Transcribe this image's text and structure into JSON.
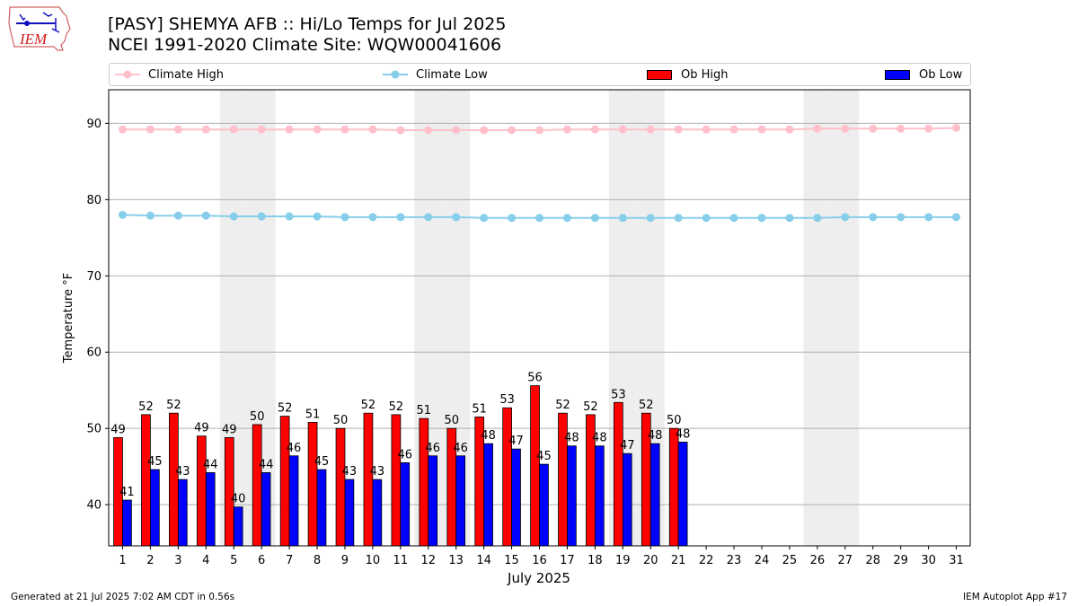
{
  "header": {
    "logo_text": "IEM",
    "title_line1": "[PASY] SHEMYA AFB :: Hi/Lo Temps for Jul 2025",
    "title_line2": "NCEI 1991-2020 Climate Site: WQW00041606"
  },
  "footer": {
    "generated": "Generated at 21 Jul 2025 7:02 AM CDT in 0.56s",
    "app": "IEM Autoplot App #17"
  },
  "legend": {
    "climate_high": "Climate High",
    "climate_low": "Climate Low",
    "ob_high": "Ob High",
    "ob_low": "Ob Low"
  },
  "colors": {
    "climate_high": "#ffc0cb",
    "climate_low": "#87ceeb",
    "ob_high": "#ff0000",
    "ob_low": "#0000ff",
    "weekend_band": "#eeeeee",
    "grid": "#b0b0b0"
  },
  "chart_data": {
    "type": "bar",
    "xlabel": "July 2025",
    "ylabel": "Temperature °F",
    "ylim": [
      34.6,
      94.4
    ],
    "yticks": [
      40,
      50,
      60,
      70,
      80,
      90
    ],
    "grid": "horizontal",
    "legend_position": "top",
    "days": [
      1,
      2,
      3,
      4,
      5,
      6,
      7,
      8,
      9,
      10,
      11,
      12,
      13,
      14,
      15,
      16,
      17,
      18,
      19,
      20,
      21,
      22,
      23,
      24,
      25,
      26,
      27,
      28,
      29,
      30,
      31
    ],
    "weekend_days": [
      5,
      6,
      12,
      13,
      19,
      20,
      26,
      27
    ],
    "series": [
      {
        "name": "Ob High",
        "kind": "bar",
        "values": [
          48.8,
          51.8,
          52.0,
          49.0,
          48.8,
          50.5,
          51.6,
          50.8,
          50.0,
          52.0,
          51.8,
          51.3,
          50.0,
          51.5,
          52.7,
          55.6,
          52.0,
          51.8,
          53.4,
          52.0,
          50.0
        ],
        "labels": [
          "49",
          "52",
          "52",
          "49",
          "49",
          "50",
          "52",
          "51",
          "50",
          "52",
          "52",
          "51",
          "50",
          "51",
          "53",
          "56",
          "52",
          "52",
          "53",
          "52",
          "50"
        ]
      },
      {
        "name": "Ob Low",
        "kind": "bar",
        "values": [
          40.6,
          44.6,
          43.3,
          44.2,
          39.7,
          44.2,
          46.4,
          44.6,
          43.3,
          43.3,
          45.5,
          46.4,
          46.4,
          48.0,
          47.3,
          45.3,
          47.7,
          47.7,
          46.7,
          48.0,
          48.2
        ],
        "labels": [
          "41",
          "45",
          "43",
          "44",
          "40",
          "44",
          "46",
          "45",
          "43",
          "43",
          "46",
          "46",
          "46",
          "48",
          "47",
          "45",
          "48",
          "48",
          "47",
          "48",
          "48"
        ]
      },
      {
        "name": "Climate High",
        "kind": "line",
        "values": [
          89.2,
          89.2,
          89.2,
          89.2,
          89.2,
          89.2,
          89.2,
          89.2,
          89.2,
          89.2,
          89.1,
          89.1,
          89.1,
          89.1,
          89.1,
          89.1,
          89.2,
          89.2,
          89.2,
          89.2,
          89.2,
          89.2,
          89.2,
          89.2,
          89.2,
          89.3,
          89.3,
          89.3,
          89.3,
          89.3,
          89.4
        ]
      },
      {
        "name": "Climate Low",
        "kind": "line",
        "values": [
          78.0,
          77.9,
          77.9,
          77.9,
          77.8,
          77.8,
          77.8,
          77.8,
          77.7,
          77.7,
          77.7,
          77.7,
          77.7,
          77.6,
          77.6,
          77.6,
          77.6,
          77.6,
          77.6,
          77.6,
          77.6,
          77.6,
          77.6,
          77.6,
          77.6,
          77.6,
          77.7,
          77.7,
          77.7,
          77.7,
          77.7
        ]
      }
    ]
  }
}
